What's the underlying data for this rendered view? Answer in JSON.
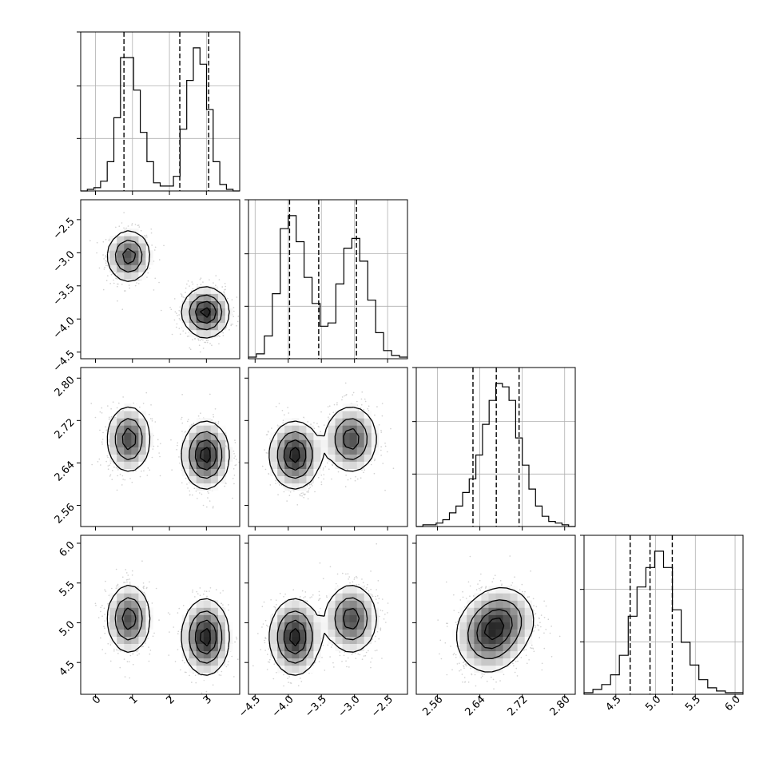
{
  "chart_data": {
    "type": "corner",
    "title": "",
    "parameters": [
      {
        "index": 0,
        "range": [
          -0.4,
          3.9
        ],
        "quantiles": [
          0.77,
          2.28,
          3.06
        ],
        "ticks": [
          0,
          1,
          2,
          3
        ],
        "tick_labels": [
          "0",
          "1",
          "2",
          "3"
        ]
      },
      {
        "index": 1,
        "range": [
          -4.6,
          -2.2
        ],
        "quantiles": [
          -3.98,
          -3.54,
          -2.97
        ],
        "ticks": [
          -4.5,
          -4.0,
          -3.5,
          -3.0,
          -2.5
        ],
        "tick_labels": [
          "−4.5",
          "−4.0",
          "−3.5",
          "−3.0",
          "−2.5"
        ]
      },
      {
        "index": 2,
        "range": [
          2.52,
          2.82
        ],
        "quantiles": [
          2.627,
          2.671,
          2.714
        ],
        "ticks": [
          2.56,
          2.64,
          2.72,
          2.8
        ],
        "tick_labels": [
          "2.56",
          "2.64",
          "2.72",
          "2.80"
        ]
      },
      {
        "index": 3,
        "range": [
          4.1,
          6.1
        ],
        "quantiles": [
          4.68,
          4.93,
          5.21
        ],
        "ticks": [
          4.5,
          5.0,
          5.5,
          6.0
        ],
        "tick_labels": [
          "4.5",
          "5.0",
          "5.5",
          "6.0"
        ]
      }
    ],
    "histograms": [
      {
        "param": 0,
        "edges": [
          -0.4,
          3.9
        ],
        "counts": [
          0,
          1,
          2,
          6,
          18,
          45,
          82,
          82,
          62,
          36,
          18,
          5,
          3,
          3,
          9,
          38,
          68,
          88,
          78,
          50,
          18,
          4,
          1,
          0
        ]
      },
      {
        "param": 1,
        "edges": [
          -4.6,
          -2.2
        ],
        "counts": [
          1,
          3,
          14,
          40,
          80,
          88,
          72,
          50,
          34,
          20,
          22,
          46,
          68,
          74,
          60,
          36,
          16,
          5,
          2,
          1
        ]
      },
      {
        "param": 2,
        "edges": [
          2.52,
          2.82
        ],
        "counts": [
          0,
          1,
          1,
          2,
          4,
          8,
          12,
          20,
          28,
          42,
          60,
          74,
          84,
          82,
          74,
          52,
          36,
          22,
          12,
          6,
          3,
          2,
          1,
          0
        ]
      },
      {
        "param": 3,
        "edges": [
          4.1,
          6.1
        ],
        "counts": [
          1,
          3,
          6,
          12,
          24,
          48,
          66,
          78,
          88,
          78,
          52,
          32,
          18,
          9,
          4,
          2,
          1,
          1
        ]
      }
    ],
    "clusters": [
      {
        "centers": [
          0.9,
          -3.05,
          2.685,
          5.05
        ],
        "sd": [
          0.3,
          0.2,
          0.032,
          0.22
        ],
        "weight": 0.45
      },
      {
        "centers": [
          2.98,
          -3.9,
          2.655,
          4.82
        ],
        "sd": [
          0.32,
          0.19,
          0.032,
          0.24
        ],
        "weight": 0.55
      }
    ],
    "contour_levels": 4,
    "xlabel": "",
    "ylabel": "",
    "grid": true
  }
}
